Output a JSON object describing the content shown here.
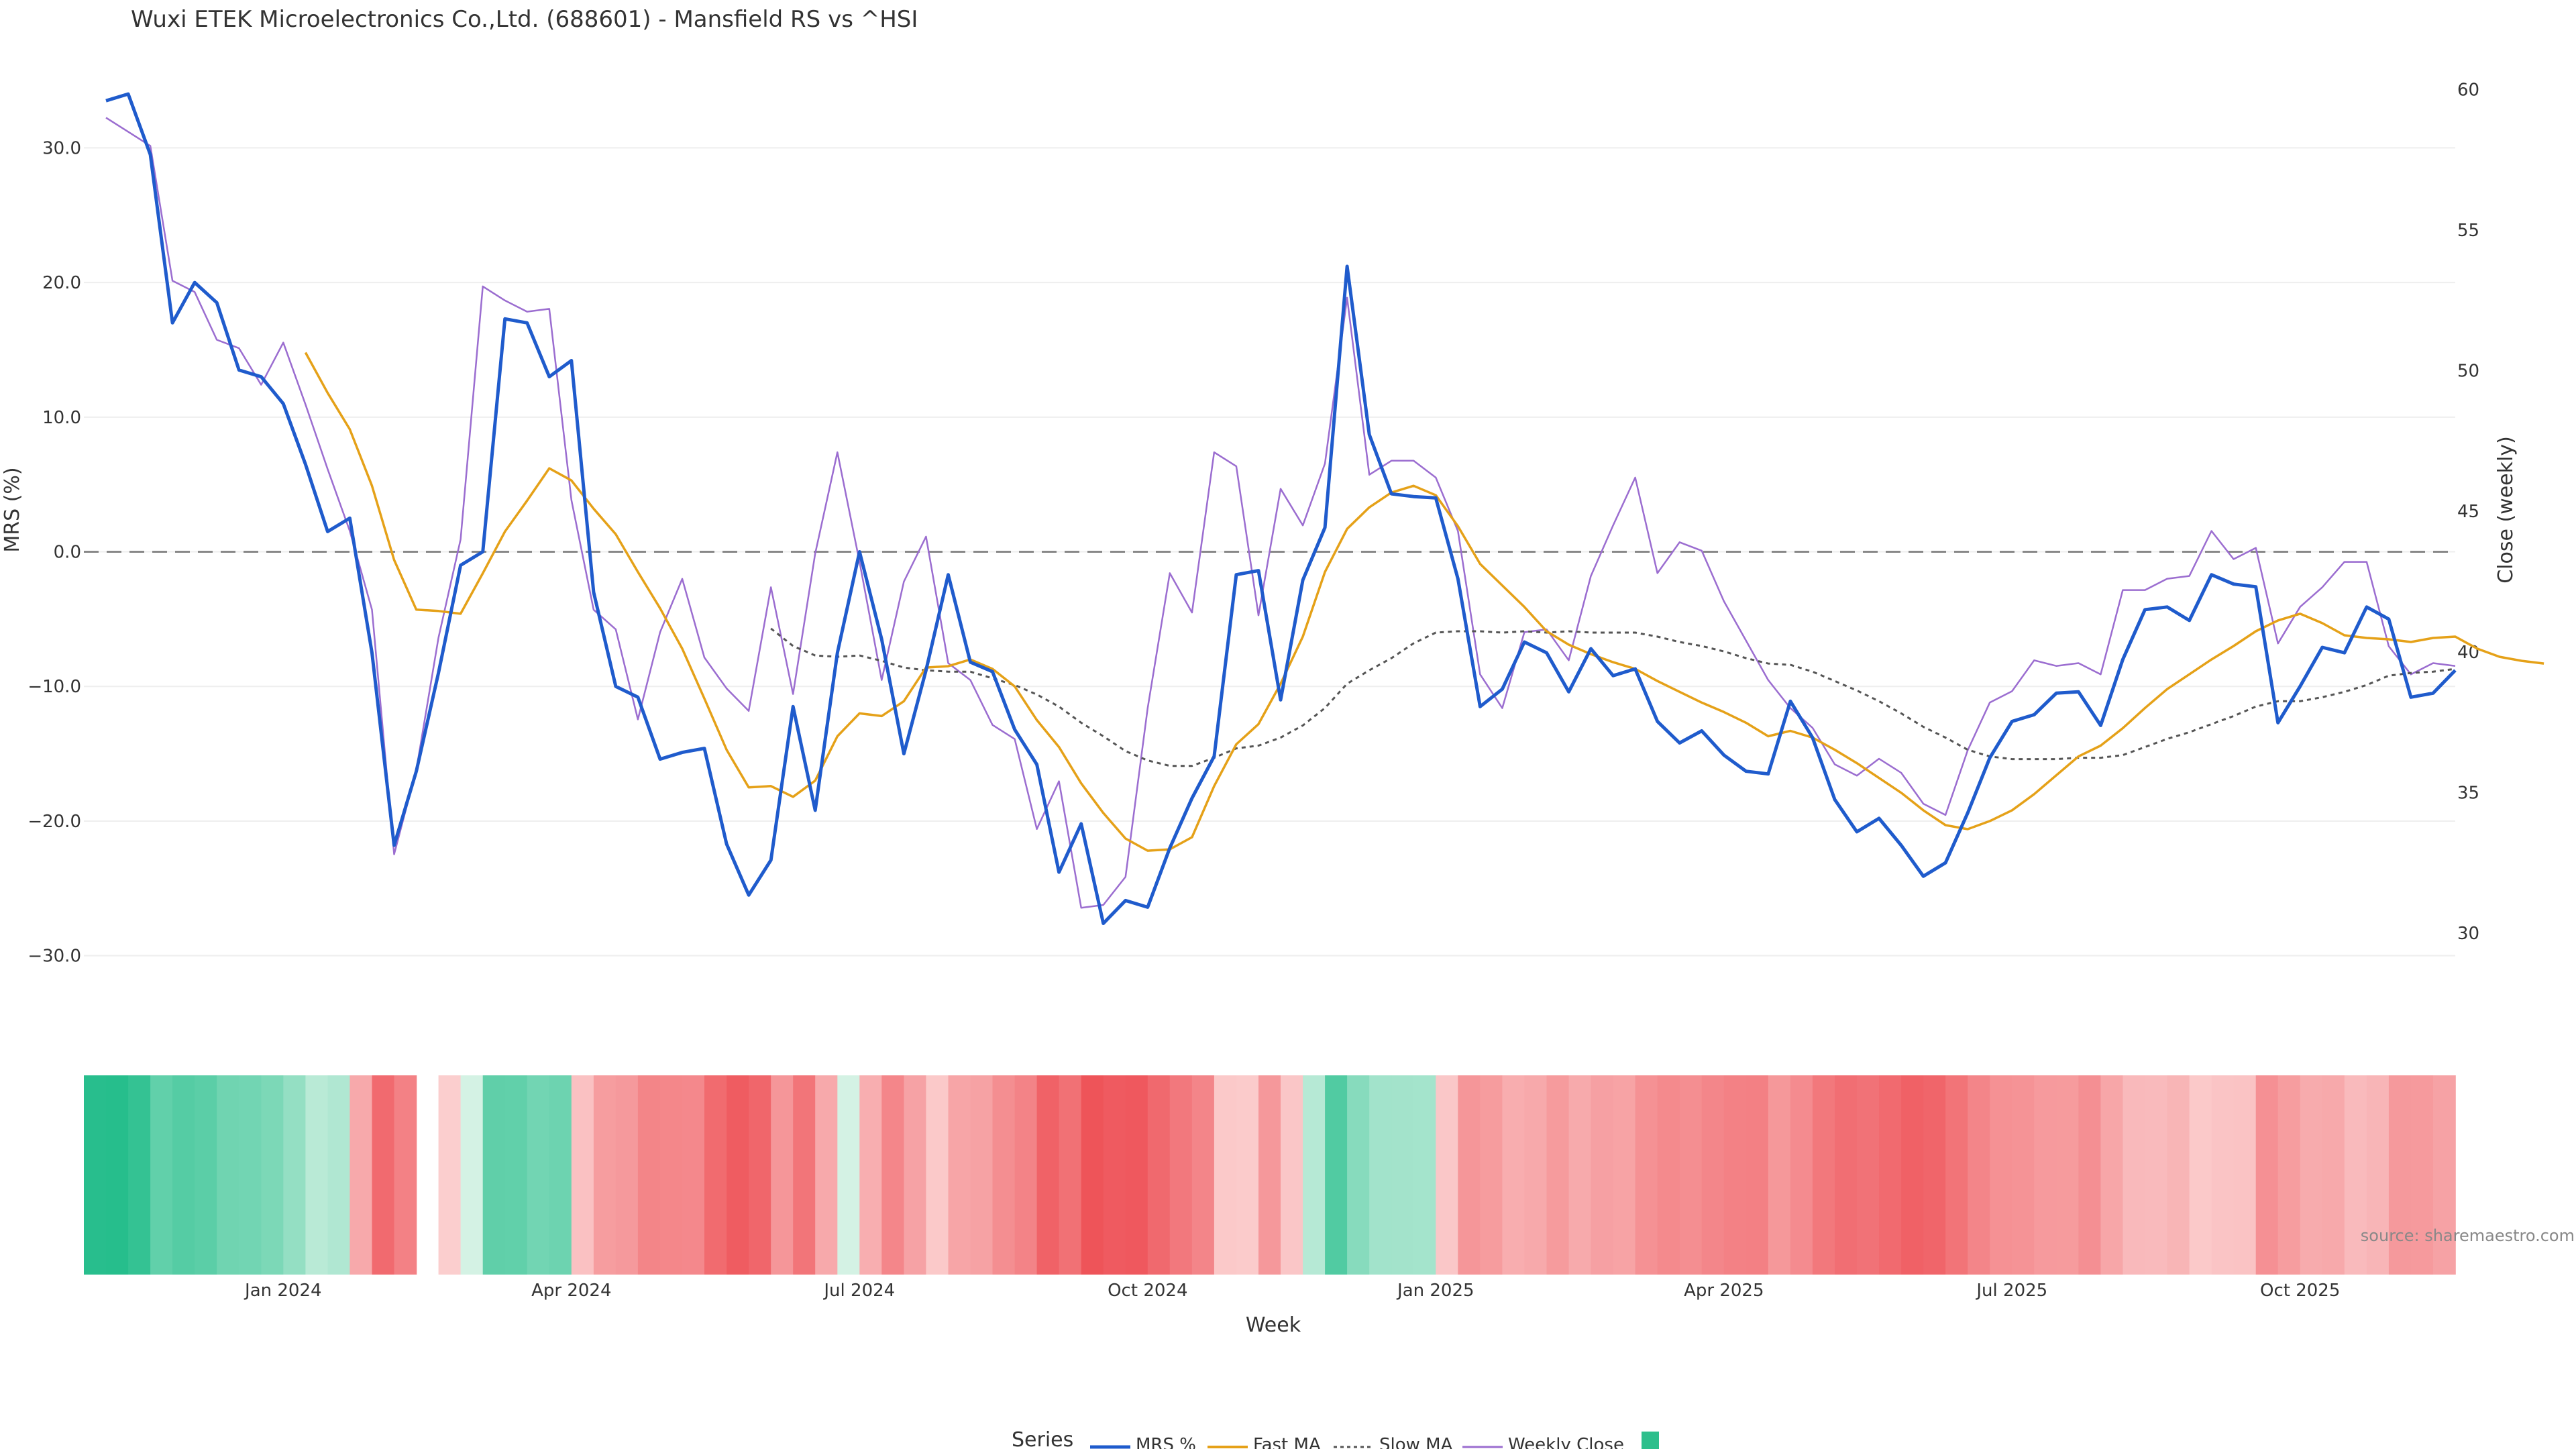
{
  "chart_data": {
    "type": "line",
    "title": "Wuxi ETEK Microelectronics Co.,Ltd. (688601) - Mansfield RS vs ^HSI",
    "xlabel": "Week",
    "ylabel_left": "MRS (%)",
    "ylabel_right": "Close (weekly)",
    "ylim_left": [
      -35,
      36
    ],
    "ylim_right": [
      26.8,
      60.8
    ],
    "xlim_weeks": [
      -4,
      103
    ],
    "y_ticks_left": [
      30,
      20,
      10,
      0,
      -10,
      -20,
      -30
    ],
    "y_tick_labels_left": [
      "30.0",
      "20.0",
      "10.0",
      "0.0",
      "−10.0",
      "−20.0",
      "−30.0"
    ],
    "y_ticks_right": [
      60,
      55,
      50,
      45,
      40,
      35,
      30
    ],
    "y_tick_labels_right": [
      "60",
      "55",
      "50",
      "45",
      "40",
      "35",
      "30"
    ],
    "x_tick_weeks": [
      5,
      18,
      31,
      44,
      57,
      70,
      83,
      96
    ],
    "x_tick_labels": [
      "Jan 2024",
      "Apr 2024",
      "Jul 2024",
      "Oct 2024",
      "Jan 2025",
      "Apr 2025",
      "Jul 2025",
      "Oct 2025"
    ],
    "zero_line": 0,
    "source": "source: sharemaestro.com",
    "legend_title": "Series",
    "legend_position": "bottom-center",
    "colors": {
      "mrs": "#1f5bcc",
      "fast_ma": "#e5a118",
      "slow_ma": "#555555",
      "weekly_close": "#9b6dd0",
      "grid": "#eeeeee",
      "zero": "#888888",
      "legend_square": "#2dbf8c"
    },
    "series": [
      {
        "name": "MRS %",
        "axis": "left",
        "start_week": -3,
        "values": [
          33.5,
          34,
          29.5,
          17,
          20,
          18.5,
          13.5,
          13,
          11,
          6.5,
          1.5,
          2.5,
          -7.5,
          -21.8,
          -16.3,
          -9,
          -1,
          0,
          17.3,
          17,
          13,
          14.2,
          -3,
          -10,
          -10.8,
          -15.4,
          -14.9,
          -14.6,
          -21.7,
          -25.5,
          -22.9,
          -11.5,
          -19.2,
          -7.5,
          0,
          -6.5,
          -15,
          -8.8,
          -1.7,
          -8.2,
          -8.9,
          -13.2,
          -15.8,
          -23.8,
          -20.2,
          -27.6,
          -25.9,
          -26.4,
          -22,
          -18.3,
          -15.2,
          -1.7,
          -1.4,
          -11,
          -2.1,
          1.8,
          21.2,
          8.7,
          4.3,
          4.1,
          4,
          -2,
          -11.5,
          -10.2,
          -6.7,
          -7.5,
          -10.4,
          -7.2,
          -9.2,
          -8.7,
          -12.6,
          -14.2,
          -13.3,
          -15.1,
          -16.3,
          -16.5,
          -11.1,
          -13.8,
          -18.4,
          -20.8,
          -19.8,
          -21.8,
          -24.1,
          -23.1,
          -19.4,
          -15.3,
          -12.6,
          -12.1,
          -10.5,
          -10.4,
          -12.9,
          -8,
          -4.3,
          -4.1,
          -5.1,
          -1.7,
          -2.4,
          -2.6,
          -12.7,
          -10,
          -7.1,
          -7.5,
          -4.1,
          -5,
          -10.8,
          -10.5,
          -8.8
        ]
      },
      {
        "name": "Fast MA",
        "axis": "left",
        "start_week": 6,
        "values": [
          14.8,
          11.8,
          9.1,
          4.9,
          -0.6,
          -4.3,
          -4.4,
          -4.6,
          -1.6,
          1.5,
          3.8,
          6.2,
          5.3,
          3.2,
          1.3,
          -1.5,
          -4.2,
          -7.2,
          -10.9,
          -14.7,
          -17.5,
          -17.4,
          -18.2,
          -17,
          -13.7,
          -12,
          -12.2,
          -11.1,
          -8.6,
          -8.5,
          -8,
          -8.7,
          -10,
          -12.5,
          -14.5,
          -17.2,
          -19.4,
          -21.3,
          -22.2,
          -22.1,
          -21.2,
          -17.4,
          -14.3,
          -12.8,
          -9.8,
          -6.3,
          -1.5,
          1.7,
          3.3,
          4.4,
          4.9,
          4.2,
          1.9,
          -0.9,
          -2.5,
          -4.1,
          -5.9,
          -6.9,
          -7.6,
          -8.2,
          -8.7,
          -9.6,
          -10.4,
          -11.2,
          -11.9,
          -12.7,
          -13.7,
          -13.3,
          -13.8,
          -14.7,
          -15.7,
          -16.8,
          -17.9,
          -19.2,
          -20.3,
          -20.6,
          -20,
          -19.2,
          -18,
          -16.6,
          -15.2,
          -14.4,
          -13.1,
          -11.6,
          -10.2,
          -9.1,
          -8,
          -7,
          -5.9,
          -5.1,
          -4.6,
          -5.3,
          -6.2,
          -6.4,
          -6.5,
          -6.7,
          -6.4,
          -6.3,
          -7.2,
          -7.8,
          -8.1,
          -8.3
        ]
      },
      {
        "name": "Slow MA",
        "axis": "left",
        "start_week": 27,
        "values": [
          -5.7,
          -7,
          -7.7,
          -7.8,
          -7.7,
          -8.1,
          -8.6,
          -8.8,
          -8.9,
          -8.9,
          -9.4,
          -9.9,
          -10.6,
          -11.5,
          -12.7,
          -13.7,
          -14.8,
          -15.5,
          -15.9,
          -15.9,
          -15.3,
          -14.6,
          -14.4,
          -13.8,
          -12.9,
          -11.6,
          -9.8,
          -8.8,
          -7.9,
          -6.8,
          -6,
          -5.9,
          -5.9,
          -6,
          -5.9,
          -6,
          -5.9,
          -6,
          -6,
          -6,
          -6.3,
          -6.7,
          -7,
          -7.4,
          -7.9,
          -8.3,
          -8.4,
          -8.9,
          -9.6,
          -10.3,
          -11.1,
          -12,
          -13,
          -13.8,
          -14.7,
          -15.2,
          -15.4,
          -15.4,
          -15.4,
          -15.3,
          -15.3,
          -15.1,
          -14.5,
          -13.9,
          -13.4,
          -12.8,
          -12.2,
          -11.5,
          -11.1,
          -11.1,
          -10.8,
          -10.4,
          -9.9,
          -9.2,
          -9,
          -8.9,
          -8.7
        ]
      },
      {
        "name": "Weekly Close",
        "axis": "right",
        "start_week": -3,
        "values": [
          59,
          58.5,
          58,
          53.2,
          52.8,
          51.1,
          50.8,
          49.5,
          51,
          48.8,
          46.5,
          44.3,
          41.5,
          32.8,
          35.8,
          40.5,
          44,
          53,
          52.5,
          52.1,
          52.2,
          45.4,
          41.5,
          40.8,
          37.6,
          40.7,
          42.6,
          39.8,
          38.7,
          37.9,
          42.3,
          38.5,
          43.5,
          47.1,
          43.2,
          39,
          42.5,
          44.1,
          39.6,
          39,
          37.4,
          36.9,
          33.7,
          35.4,
          30.9,
          31,
          32,
          38,
          42.8,
          41.4,
          47.1,
          46.6,
          41.3,
          45.8,
          44.5,
          46.7,
          52.6,
          46.3,
          46.8,
          46.8,
          46.2,
          44.3,
          39.2,
          38,
          40.7,
          40.8,
          39.7,
          42.7,
          44.5,
          46.2,
          42.8,
          43.9,
          43.6,
          41.8,
          40.4,
          39,
          38,
          37.3,
          36,
          35.6,
          36.2,
          35.7,
          34.6,
          34.2,
          36.5,
          38.2,
          38.6,
          39.7,
          39.5,
          39.6,
          39.2,
          42.2,
          42.2,
          42.6,
          42.7,
          44.3,
          43.3,
          43.7,
          40.3,
          41.6,
          42.3,
          43.2,
          43.2,
          40.2,
          39.2,
          39.6,
          39.5
        ]
      }
    ],
    "heatmap_strip": {
      "scale_min": -28,
      "scale_max": 34,
      "gap_weeks": [
        12
      ]
    }
  },
  "legend": {
    "title": "Series",
    "items": [
      "MRS %",
      "Fast MA",
      "Slow MA",
      "Weekly Close"
    ]
  }
}
